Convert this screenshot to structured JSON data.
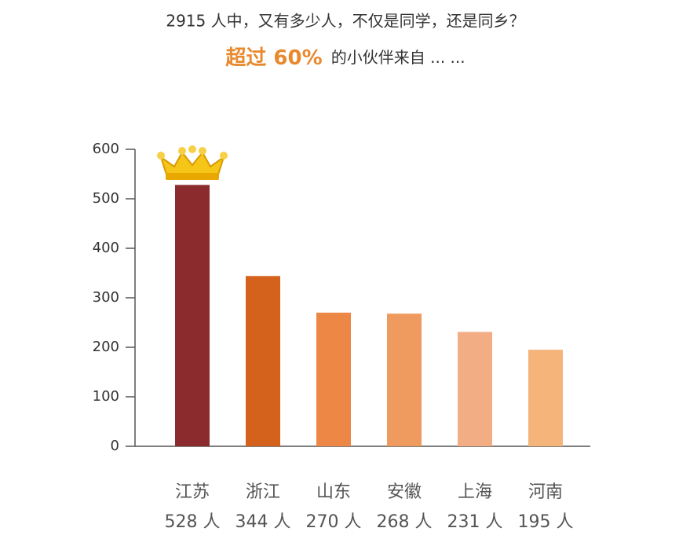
{
  "chart_data": {
    "type": "bar",
    "title": "2915 人中，又有多少人，不仅是同学，还是同乡？",
    "subtitle_highlight": "超过 60%",
    "subtitle": "的小伙伴来自 ... ...",
    "categories": [
      "江苏",
      "浙江",
      "山东",
      "安徽",
      "上海",
      "河南"
    ],
    "values": [
      528,
      344,
      270,
      268,
      231,
      195
    ],
    "value_labels": [
      "528 人",
      "344 人",
      "270 人",
      "268 人",
      "231 人",
      "195 人"
    ],
    "colors": [
      "#8b2b2d",
      "#d4621d",
      "#ec8746",
      "#ef9a5e",
      "#f2ad84",
      "#f4b47a"
    ],
    "ylim": [
      0,
      600
    ],
    "yticks": [
      0,
      100,
      200,
      300,
      400,
      500,
      600
    ]
  }
}
